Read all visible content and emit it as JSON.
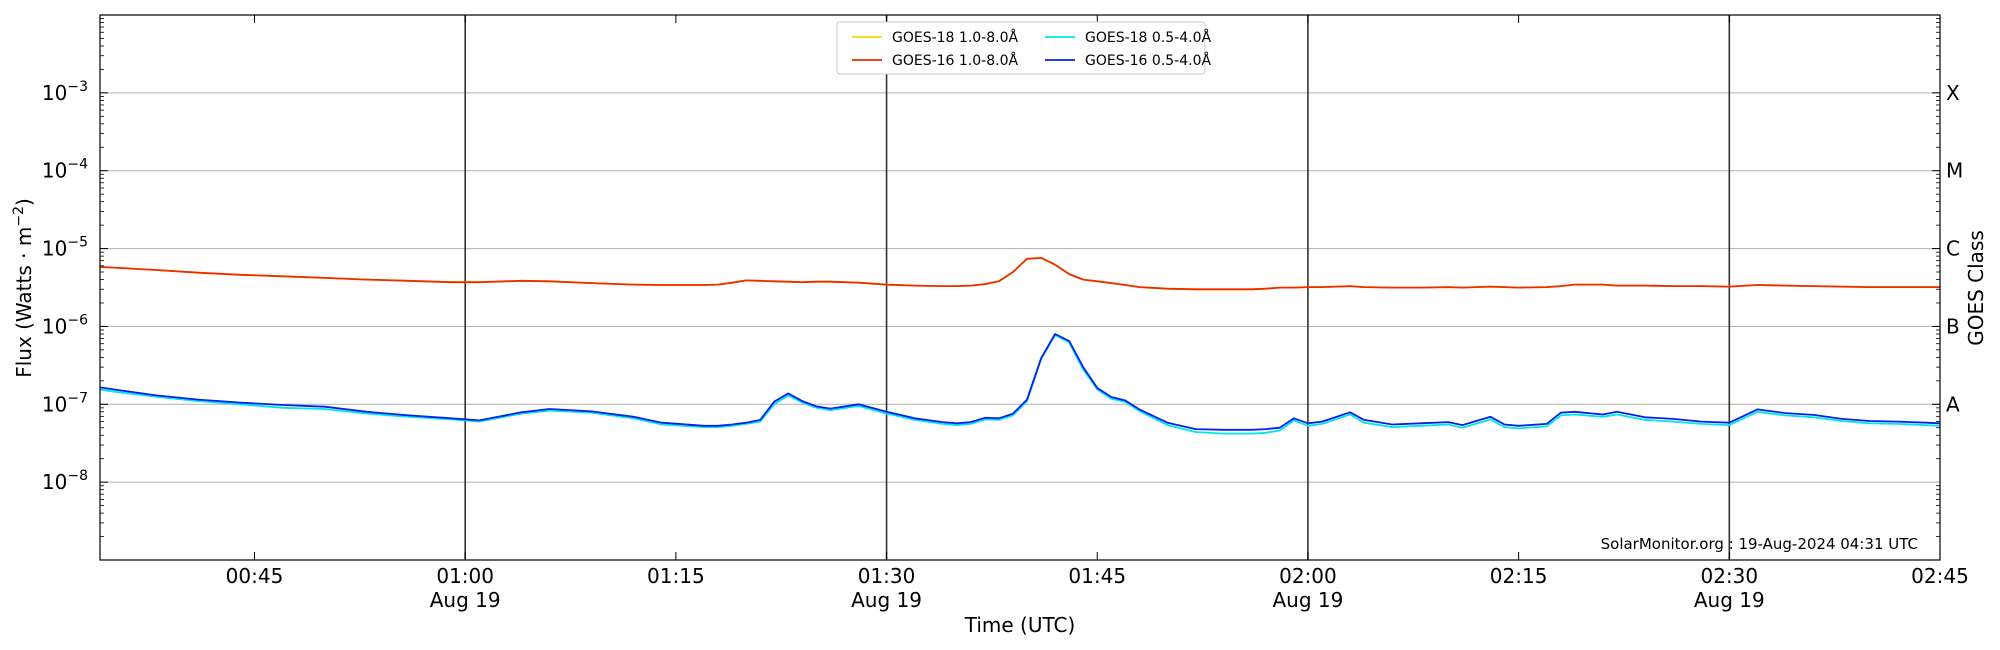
{
  "chart_data": {
    "type": "line",
    "xlabel": "Time (UTC)",
    "ylabel_main": "Flux (Watts · m",
    "ylabel_sup": "−2",
    "ylabel_close": ")",
    "y2label": "GOES Class",
    "yscale": "log",
    "xlim": [
      "00:34",
      "02:45"
    ],
    "ylim": [
      1e-09,
      0.01
    ],
    "grid": "horizontal",
    "legend_position": "top-center",
    "watermark": "SolarMonitor.org : 19-Aug-2024 04:31 UTC",
    "x_ticks": [
      {
        "t": "00:45",
        "date": ""
      },
      {
        "t": "01:00",
        "date": "Aug 19"
      },
      {
        "t": "01:15",
        "date": ""
      },
      {
        "t": "01:30",
        "date": "Aug 19"
      },
      {
        "t": "01:45",
        "date": ""
      },
      {
        "t": "02:00",
        "date": "Aug 19"
      },
      {
        "t": "02:15",
        "date": ""
      },
      {
        "t": "02:30",
        "date": "Aug 19"
      },
      {
        "t": "02:45",
        "date": ""
      }
    ],
    "vlines": [
      "01:00",
      "01:30",
      "02:00",
      "02:30"
    ],
    "y_ticks": [
      {
        "v": 1e-08,
        "base": "10",
        "exp": "−8"
      },
      {
        "v": 1e-07,
        "base": "10",
        "exp": "−7"
      },
      {
        "v": 1e-06,
        "base": "10",
        "exp": "−6"
      },
      {
        "v": 1e-05,
        "base": "10",
        "exp": "−5"
      },
      {
        "v": 0.0001,
        "base": "10",
        "exp": "−4"
      },
      {
        "v": 0.001,
        "base": "10",
        "exp": "−3"
      }
    ],
    "goes_classes": [
      {
        "label": "A",
        "v": 1e-07
      },
      {
        "label": "B",
        "v": 1e-06
      },
      {
        "label": "C",
        "v": 1e-05
      },
      {
        "label": "M",
        "v": 0.0001
      },
      {
        "label": "X",
        "v": 0.001
      }
    ],
    "x": [
      "00:34",
      "00:35",
      "00:38",
      "00:41",
      "00:44",
      "00:47",
      "00:50",
      "00:53",
      "00:56",
      "00:59",
      "01:01",
      "01:04",
      "01:06",
      "01:09",
      "01:12",
      "01:14",
      "01:17",
      "01:18",
      "01:19",
      "01:20",
      "01:21",
      "01:22",
      "01:23",
      "01:24",
      "01:25",
      "01:26",
      "01:28",
      "01:30",
      "01:32",
      "01:34",
      "01:35",
      "01:36",
      "01:37",
      "01:38",
      "01:39",
      "01:40",
      "01:41",
      "01:42",
      "01:43",
      "01:44",
      "01:45",
      "01:46",
      "01:47",
      "01:48",
      "01:50",
      "01:52",
      "01:54",
      "01:56",
      "01:57",
      "01:58",
      "01:59",
      "02:00",
      "02:01",
      "02:03",
      "02:04",
      "02:06",
      "02:08",
      "02:10",
      "02:11",
      "02:13",
      "02:14",
      "02:15",
      "02:17",
      "02:18",
      "02:19",
      "02:21",
      "02:22",
      "02:24",
      "02:26",
      "02:28",
      "02:30",
      "02:32",
      "02:34",
      "02:36",
      "02:38",
      "02:40",
      "02:42",
      "02:44",
      "02:45"
    ],
    "series": [
      {
        "name": "GOES-18 1.0-8.0Å",
        "color": "#ffd700",
        "values": [
          5.8e-06,
          5.7e-06,
          5.3e-06,
          4.9e-06,
          4.6e-06,
          4.4e-06,
          4.2e-06,
          4e-06,
          3.85e-06,
          3.7e-06,
          3.7e-06,
          3.85e-06,
          3.8e-06,
          3.6e-06,
          3.45e-06,
          3.4e-06,
          3.4e-06,
          3.45e-06,
          3.65e-06,
          3.9e-06,
          3.85e-06,
          3.8e-06,
          3.75e-06,
          3.7e-06,
          3.75e-06,
          3.75e-06,
          3.65e-06,
          3.45e-06,
          3.35e-06,
          3.3e-06,
          3.3e-06,
          3.35e-06,
          3.5e-06,
          3.8e-06,
          5e-06,
          7.4e-06,
          7.6e-06,
          6.2e-06,
          4.7e-06,
          4e-06,
          3.8e-06,
          3.6e-06,
          3.4e-06,
          3.2e-06,
          3.05e-06,
          3e-06,
          3e-06,
          3e-06,
          3.05e-06,
          3.15e-06,
          3.15e-06,
          3.2e-06,
          3.2e-06,
          3.3e-06,
          3.2e-06,
          3.15e-06,
          3.15e-06,
          3.2e-06,
          3.15e-06,
          3.25e-06,
          3.2e-06,
          3.15e-06,
          3.2e-06,
          3.3e-06,
          3.45e-06,
          3.45e-06,
          3.35e-06,
          3.35e-06,
          3.3e-06,
          3.3e-06,
          3.25e-06,
          3.4e-06,
          3.35e-06,
          3.3e-06,
          3.25e-06,
          3.2e-06,
          3.2e-06,
          3.2e-06,
          3.2e-06
        ]
      },
      {
        "name": "GOES-18 0.5-4.0Å",
        "color": "#00e5ee",
        "values": [
          1.55e-07,
          1.45e-07,
          1.25e-07,
          1.1e-07,
          1e-07,
          9e-08,
          8.7e-08,
          7.6e-08,
          6.9e-08,
          6.4e-08,
          6e-08,
          7.6e-08,
          8.3e-08,
          7.8e-08,
          6.6e-08,
          5.5e-08,
          5.1e-08,
          5.1e-08,
          5.3e-08,
          5.6e-08,
          6e-08,
          1e-07,
          1.3e-07,
          1.05e-07,
          9e-08,
          8.4e-08,
          9.5e-08,
          7.6e-08,
          6.3e-08,
          5.6e-08,
          5.4e-08,
          5.6e-08,
          6.4e-08,
          6.3e-08,
          7.2e-08,
          1.1e-07,
          3.8e-07,
          7.8e-07,
          6.2e-07,
          2.8e-07,
          1.55e-07,
          1.18e-07,
          1.07e-07,
          8.2e-08,
          5.4e-08,
          4.4e-08,
          4.2e-08,
          4.2e-08,
          4.3e-08,
          4.6e-08,
          6.2e-08,
          5.3e-08,
          5.6e-08,
          7.4e-08,
          5.8e-08,
          5.1e-08,
          5.3e-08,
          5.5e-08,
          5e-08,
          6.4e-08,
          5.1e-08,
          4.9e-08,
          5.2e-08,
          7.2e-08,
          7.4e-08,
          6.9e-08,
          7.4e-08,
          6.3e-08,
          6e-08,
          5.6e-08,
          5.4e-08,
          8e-08,
          7.2e-08,
          6.8e-08,
          6.1e-08,
          5.7e-08,
          5.6e-08,
          5.4e-08,
          5.3e-08
        ]
      },
      {
        "name": "GOES-16 1.0-8.0Å",
        "color": "#ee2c00",
        "values": [
          5.8e-06,
          5.7e-06,
          5.3e-06,
          4.9e-06,
          4.6e-06,
          4.4e-06,
          4.2e-06,
          4e-06,
          3.85e-06,
          3.7e-06,
          3.7e-06,
          3.85e-06,
          3.8e-06,
          3.6e-06,
          3.45e-06,
          3.4e-06,
          3.4e-06,
          3.45e-06,
          3.65e-06,
          3.9e-06,
          3.85e-06,
          3.8e-06,
          3.75e-06,
          3.7e-06,
          3.75e-06,
          3.75e-06,
          3.65e-06,
          3.45e-06,
          3.35e-06,
          3.3e-06,
          3.3e-06,
          3.35e-06,
          3.5e-06,
          3.8e-06,
          5e-06,
          7.4e-06,
          7.6e-06,
          6.2e-06,
          4.7e-06,
          4e-06,
          3.8e-06,
          3.6e-06,
          3.4e-06,
          3.2e-06,
          3.05e-06,
          3e-06,
          3e-06,
          3e-06,
          3.05e-06,
          3.15e-06,
          3.15e-06,
          3.2e-06,
          3.2e-06,
          3.3e-06,
          3.2e-06,
          3.15e-06,
          3.15e-06,
          3.2e-06,
          3.15e-06,
          3.25e-06,
          3.2e-06,
          3.15e-06,
          3.2e-06,
          3.3e-06,
          3.45e-06,
          3.45e-06,
          3.35e-06,
          3.35e-06,
          3.3e-06,
          3.3e-06,
          3.25e-06,
          3.4e-06,
          3.35e-06,
          3.3e-06,
          3.25e-06,
          3.2e-06,
          3.2e-06,
          3.2e-06,
          3.2e-06
        ]
      },
      {
        "name": "GOES-16 0.5-4.0Å",
        "color": "#0022ee",
        "values": [
          1.65e-07,
          1.55e-07,
          1.3e-07,
          1.15e-07,
          1.05e-07,
          9.8e-08,
          9.3e-08,
          8e-08,
          7.2e-08,
          6.6e-08,
          6.2e-08,
          7.9e-08,
          8.7e-08,
          8.1e-08,
          6.9e-08,
          5.8e-08,
          5.3e-08,
          5.3e-08,
          5.5e-08,
          5.8e-08,
          6.3e-08,
          1.08e-07,
          1.38e-07,
          1.1e-07,
          9.4e-08,
          8.8e-08,
          1e-07,
          8e-08,
          6.6e-08,
          5.9e-08,
          5.7e-08,
          5.9e-08,
          6.7e-08,
          6.6e-08,
          7.6e-08,
          1.15e-07,
          3.9e-07,
          8e-07,
          6.5e-07,
          3e-07,
          1.62e-07,
          1.24e-07,
          1.12e-07,
          8.6e-08,
          5.8e-08,
          4.8e-08,
          4.7e-08,
          4.7e-08,
          4.8e-08,
          5e-08,
          6.6e-08,
          5.7e-08,
          6e-08,
          7.9e-08,
          6.3e-08,
          5.5e-08,
          5.7e-08,
          5.9e-08,
          5.4e-08,
          6.9e-08,
          5.5e-08,
          5.3e-08,
          5.6e-08,
          7.8e-08,
          8e-08,
          7.4e-08,
          8e-08,
          6.8e-08,
          6.5e-08,
          6e-08,
          5.8e-08,
          8.6e-08,
          7.7e-08,
          7.3e-08,
          6.5e-08,
          6.1e-08,
          6e-08,
          5.8e-08,
          5.7e-08
        ]
      }
    ]
  }
}
